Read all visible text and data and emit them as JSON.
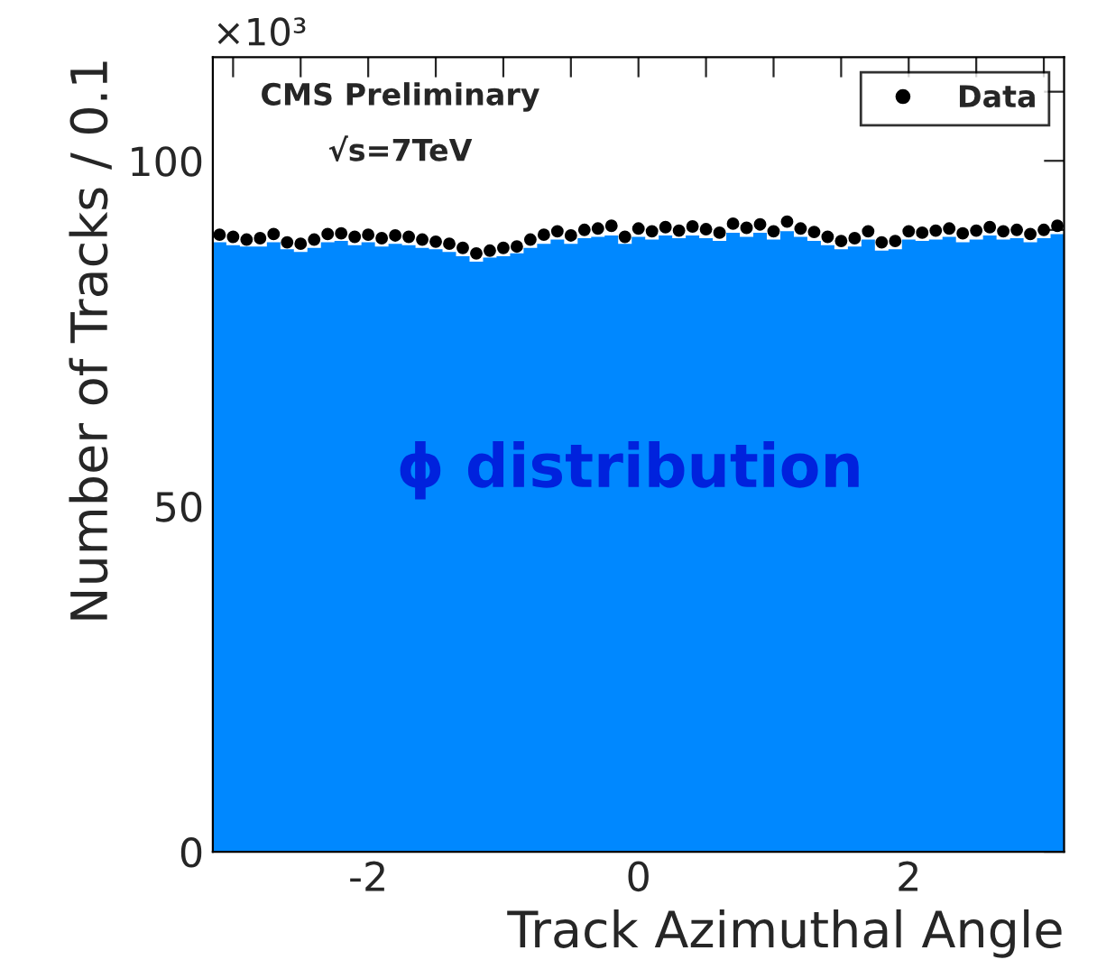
{
  "chart_data": {
    "type": "histogram",
    "xlabel": "Track Azimuthal Angle",
    "ylabel": "Number of Tracks / 0.1",
    "annotations": [
      "×10³",
      "CMS Preliminary",
      "√s=7TeV",
      "ϕ distribution"
    ],
    "bins": [
      -3.15,
      -3.05,
      -2.95,
      -2.85,
      -2.75,
      -2.65,
      -2.55,
      -2.45,
      -2.35,
      -2.25,
      -2.15,
      -2.05,
      -1.95,
      -1.85,
      -1.75,
      -1.65,
      -1.55,
      -1.45,
      -1.35,
      -1.25,
      -1.15,
      -1.05,
      -0.95,
      -0.85,
      -0.75,
      -0.65,
      -0.55,
      -0.45,
      -0.35,
      -0.25,
      -0.15,
      -0.05,
      0.05,
      0.15,
      0.25,
      0.35,
      0.45,
      0.55,
      0.65,
      0.75,
      0.85,
      0.95,
      1.05,
      1.15,
      1.25,
      1.35,
      1.45,
      1.55,
      1.65,
      1.75,
      1.85,
      1.95,
      2.05,
      2.15,
      2.25,
      2.35,
      2.45,
      2.55,
      2.65,
      2.75,
      2.85,
      2.95,
      3.05,
      3.15
    ],
    "series": [
      {
        "color": "#0088ff",
        "values": [
          88.2,
          87.8,
          87.6,
          87.6,
          88.2,
          87.2,
          86.8,
          87.4,
          88.2,
          88.4,
          87.8,
          88.2,
          87.6,
          88.0,
          87.8,
          87.4,
          87.2,
          86.8,
          86.2,
          85.4,
          86.0,
          86.2,
          86.6,
          87.4,
          88.0,
          88.6,
          88.0,
          88.8,
          89.0,
          89.2,
          88.0,
          89.0,
          88.6,
          89.2,
          88.8,
          89.2,
          88.8,
          88.4,
          89.6,
          89.0,
          89.6,
          88.6,
          89.8,
          89.0,
          88.4,
          87.8,
          87.2,
          87.6,
          88.6,
          87.0,
          87.2,
          88.6,
          88.4,
          88.6,
          89.0,
          88.2,
          88.6,
          89.2,
          88.6,
          88.8,
          88.2,
          88.8,
          89.4
        ]
      },
      {
        "type": "scatter",
        "name": "Data",
        "color": "#000000",
        "marker": "circle",
        "x": [
          -3.1,
          -3.0,
          -2.9,
          -2.8,
          -2.7,
          -2.6,
          -2.5,
          -2.4,
          -2.3,
          -2.2,
          -2.1,
          -2.0,
          -1.9,
          -1.8,
          -1.7,
          -1.6,
          -1.5,
          -1.4,
          -1.3,
          -1.2,
          -1.1,
          -1.0,
          -0.9,
          -0.8,
          -0.7,
          -0.6,
          -0.5,
          -0.4,
          -0.3,
          -0.2,
          -0.1,
          0.0,
          0.1,
          0.2,
          0.3,
          0.4,
          0.5,
          0.6,
          0.7,
          0.8,
          0.9,
          1.0,
          1.1,
          1.2,
          1.3,
          1.4,
          1.5,
          1.6,
          1.7,
          1.8,
          1.9,
          2.0,
          2.1,
          2.2,
          2.3,
          2.4,
          2.5,
          2.6,
          2.7,
          2.8,
          2.9,
          3.0,
          3.1
        ],
        "values": [
          89.3,
          89.0,
          88.6,
          88.8,
          89.4,
          88.2,
          88.0,
          88.6,
          89.4,
          89.5,
          89.0,
          89.3,
          88.8,
          89.2,
          89.0,
          88.6,
          88.3,
          88.0,
          87.4,
          86.6,
          87.0,
          87.4,
          87.6,
          88.6,
          89.3,
          89.8,
          89.2,
          90.0,
          90.2,
          90.6,
          89.0,
          90.2,
          89.8,
          90.4,
          89.9,
          90.5,
          90.1,
          89.6,
          90.9,
          90.3,
          90.8,
          89.8,
          91.2,
          90.2,
          89.7,
          89.0,
          88.4,
          88.8,
          89.8,
          88.2,
          88.4,
          89.8,
          89.6,
          89.9,
          90.2,
          89.5,
          89.9,
          90.4,
          89.8,
          90.0,
          89.4,
          90.0,
          90.6
        ]
      }
    ],
    "xlim": [
      -3.15,
      3.15
    ],
    "xticks": [
      {
        "value": -3,
        "label": null
      },
      {
        "value": -2.5,
        "label": null
      },
      -2,
      {
        "value": -1.5,
        "label": null
      },
      {
        "value": -1,
        "label": null
      },
      {
        "value": -0.5,
        "label": null
      },
      0,
      {
        "value": 0.5,
        "label": null
      },
      {
        "value": 1,
        "label": null
      },
      {
        "value": 1.5,
        "label": null
      },
      2,
      {
        "value": 2.5,
        "label": null
      },
      {
        "value": 3,
        "label": null
      }
    ],
    "ylim": [
      0,
      115
    ],
    "yticks": [
      0,
      {
        "value": 10,
        "label": null
      },
      {
        "value": 20,
        "label": null
      },
      {
        "value": 30,
        "label": null
      },
      {
        "value": 40,
        "label": null
      },
      50,
      {
        "value": 60,
        "label": null
      },
      {
        "value": 70,
        "label": null
      },
      {
        "value": 80,
        "label": null
      },
      {
        "value": 90,
        "label": null
      },
      100,
      {
        "value": 110,
        "label": null
      }
    ],
    "legend": "top right",
    "grid": false
  }
}
